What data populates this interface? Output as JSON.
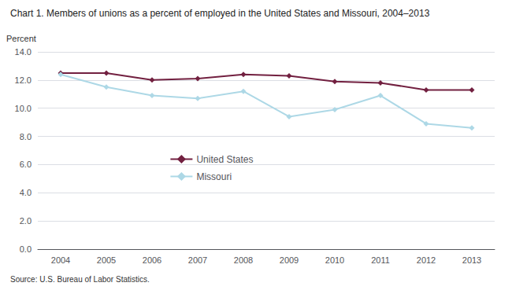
{
  "chart_data": {
    "type": "line",
    "title": "Chart 1. Members of unions as a percent of employed in the United States and Missouri, 2004–2013",
    "ylabel": "Percent",
    "annotations": [
      "Source: U.S. Bureau of Labor Statistics."
    ],
    "categories": [
      "2004",
      "2005",
      "2006",
      "2007",
      "2008",
      "2009",
      "2010",
      "2011",
      "2012",
      "2013"
    ],
    "series": [
      {
        "name": "United States",
        "color": "#722040",
        "marker": "diamond",
        "values": [
          12.5,
          12.5,
          12.0,
          12.1,
          12.4,
          12.3,
          11.9,
          11.8,
          11.3,
          11.3
        ]
      },
      {
        "name": "Missouri",
        "color": "#add8e6",
        "marker": "diamond",
        "values": [
          12.4,
          11.5,
          10.9,
          10.7,
          11.2,
          9.4,
          9.9,
          10.9,
          8.9,
          8.6
        ]
      }
    ],
    "ylim": [
      0.0,
      14.0
    ],
    "yticks": [
      {
        "value": 0,
        "label": "0.0"
      },
      {
        "value": 2,
        "label": "2.0"
      },
      {
        "value": 4,
        "label": "4.0"
      },
      {
        "value": 6,
        "label": "6.0"
      },
      {
        "value": 8,
        "label": "8.0"
      },
      {
        "value": 10,
        "label": "10.0"
      },
      {
        "value": 12,
        "label": "12.0"
      },
      {
        "value": 14,
        "label": "14.0"
      }
    ],
    "grid": true,
    "legend": "center"
  }
}
